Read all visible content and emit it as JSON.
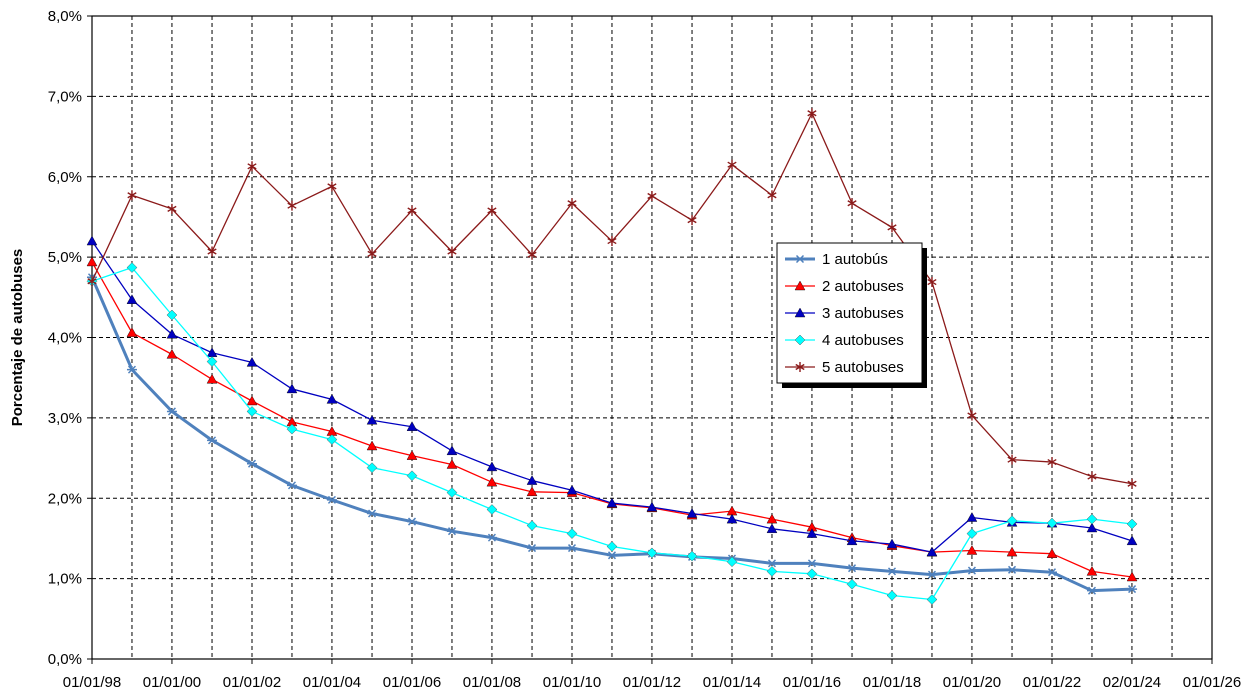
{
  "chart_data": {
    "type": "line",
    "title": "",
    "xlabel": "",
    "ylabel": "Porcentaje de autobuses",
    "ylim": [
      0,
      8
    ],
    "xlim": [
      "1998-01-01",
      "2026-01-01"
    ],
    "grid": true,
    "legend_position": "right-center",
    "x_tick_labels": [
      "01/01/98",
      "01/01/00",
      "01/01/02",
      "01/01/04",
      "01/01/06",
      "01/01/08",
      "01/01/10",
      "01/01/12",
      "01/01/14",
      "01/01/16",
      "01/01/18",
      "01/01/20",
      "01/01/22",
      "02/01/24",
      "01/01/26"
    ],
    "y_tick_labels": [
      "0,0%",
      "1,0%",
      "2,0%",
      "3,0%",
      "4,0%",
      "5,0%",
      "6,0%",
      "7,0%",
      "8,0%"
    ],
    "y_tick_values": [
      0,
      1,
      2,
      3,
      4,
      5,
      6,
      7,
      8
    ],
    "x": [
      "1998-01-01",
      "1999-01-01",
      "2000-01-01",
      "2001-01-01",
      "2002-01-01",
      "2003-01-01",
      "2004-01-01",
      "2005-01-01",
      "2006-01-01",
      "2007-01-01",
      "2008-01-01",
      "2009-01-01",
      "2010-01-01",
      "2011-01-01",
      "2012-01-01",
      "2013-01-01",
      "2014-01-01",
      "2015-01-01",
      "2016-01-01",
      "2017-01-01",
      "2018-01-01",
      "2019-01-01",
      "2020-01-01",
      "2021-01-01",
      "2022-01-01",
      "2023-01-01",
      "2024-01-02"
    ],
    "series": [
      {
        "name": "1 autobús",
        "color": "#4F81BD",
        "marker": "star",
        "width": 3,
        "values": [
          4.75,
          3.6,
          3.08,
          2.72,
          2.43,
          2.16,
          1.98,
          1.81,
          1.71,
          1.59,
          1.51,
          1.38,
          1.38,
          1.29,
          1.31,
          1.27,
          1.25,
          1.19,
          1.19,
          1.13,
          1.09,
          1.05,
          1.1,
          1.11,
          1.08,
          0.85,
          0.87
        ]
      },
      {
        "name": "2 autobuses",
        "color": "#FF0000",
        "marker": "triangle",
        "width": 1.3,
        "values": [
          4.94,
          4.06,
          3.79,
          3.48,
          3.21,
          2.95,
          2.83,
          2.65,
          2.53,
          2.42,
          2.2,
          2.08,
          2.07,
          1.93,
          1.88,
          1.79,
          1.84,
          1.74,
          1.64,
          1.51,
          1.41,
          1.33,
          1.35,
          1.33,
          1.31,
          1.09,
          1.02
        ]
      },
      {
        "name": "3 autobuses",
        "color": "#0000C0",
        "marker": "triangle",
        "width": 1.3,
        "values": [
          5.2,
          4.47,
          4.04,
          3.81,
          3.69,
          3.36,
          3.23,
          2.97,
          2.89,
          2.59,
          2.39,
          2.22,
          2.1,
          1.94,
          1.89,
          1.81,
          1.74,
          1.62,
          1.56,
          1.47,
          1.43,
          1.33,
          1.76,
          1.7,
          1.69,
          1.63,
          1.47
        ]
      },
      {
        "name": "4 autobuses",
        "color": "#00FFFF",
        "marker": "diamond",
        "width": 1.3,
        "values": [
          4.7,
          4.87,
          4.28,
          3.7,
          3.08,
          2.86,
          2.73,
          2.38,
          2.28,
          2.07,
          1.86,
          1.66,
          1.56,
          1.4,
          1.32,
          1.28,
          1.21,
          1.09,
          1.06,
          0.93,
          0.79,
          0.74,
          1.56,
          1.72,
          1.69,
          1.74,
          1.68
        ]
      },
      {
        "name": "5 autobuses",
        "color": "#8B1A1A",
        "marker": "asterisk",
        "width": 1.3,
        "values": [
          4.7,
          5.77,
          5.6,
          5.07,
          6.13,
          5.64,
          5.88,
          5.04,
          5.58,
          5.07,
          5.58,
          5.03,
          5.67,
          5.2,
          5.76,
          5.46,
          6.15,
          5.77,
          6.79,
          5.67,
          5.37,
          4.69,
          3.03,
          2.48,
          2.45,
          2.27,
          2.18
        ]
      }
    ]
  }
}
